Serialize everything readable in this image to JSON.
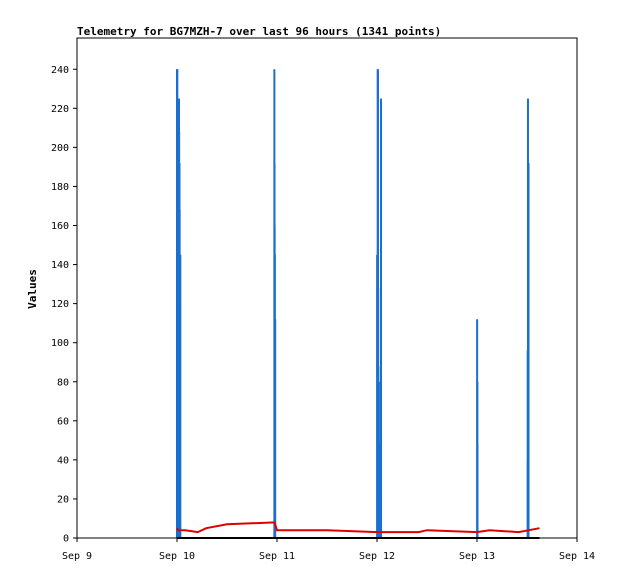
{
  "chart_data": {
    "type": "bar",
    "title": "Telemetry for BG7MZH-7 over last 96 hours (1341 points)",
    "ylabel": "Values",
    "xlabel": "",
    "x_ticks": [
      "Sep 9",
      "Sep 10",
      "Sep 11",
      "Sep 12",
      "Sep 13",
      "Sep 14"
    ],
    "y_ticks": [
      0,
      20,
      40,
      60,
      80,
      100,
      120,
      140,
      160,
      180,
      200,
      220,
      240
    ],
    "xlim": [
      "2024-09-09T00:00",
      "2024-09-14T00:00"
    ],
    "ylim": [
      0,
      256
    ],
    "grid": false,
    "series": [
      {
        "color": "#1a6fcf",
        "style": "bars",
        "points": [
          [
            "2024-09-10T00:00",
            240
          ],
          [
            "2024-09-10T00:02",
            240
          ],
          [
            "2024-09-10T00:04",
            240
          ],
          [
            "2024-09-10T00:07",
            145
          ],
          [
            "2024-09-10T00:10",
            40
          ],
          [
            "2024-09-10T00:14",
            48
          ],
          [
            "2024-09-10T00:17",
            48
          ],
          [
            "2024-09-10T00:22",
            112
          ],
          [
            "2024-09-10T00:26",
            96
          ],
          [
            "2024-09-10T00:29",
            225
          ],
          [
            "2024-09-10T00:31",
            208
          ],
          [
            "2024-09-10T00:34",
            192
          ],
          [
            "2024-09-10T00:36",
            192
          ],
          [
            "2024-09-10T00:38",
            168
          ],
          [
            "2024-09-10T00:41",
            120
          ],
          [
            "2024-09-10T00:43",
            72
          ],
          [
            "2024-09-10T00:48",
            145
          ],
          [
            "2024-09-10T23:22",
            240
          ],
          [
            "2024-09-10T23:24",
            192
          ],
          [
            "2024-09-10T23:26",
            160
          ],
          [
            "2024-09-10T23:29",
            145
          ],
          [
            "2024-09-10T23:31",
            112
          ],
          [
            "2024-09-10T23:34",
            112
          ],
          [
            "2024-09-12T00:02",
            145
          ],
          [
            "2024-09-12T00:05",
            128
          ],
          [
            "2024-09-12T00:07",
            96
          ],
          [
            "2024-09-12T00:10",
            240
          ],
          [
            "2024-09-12T00:12",
            120
          ],
          [
            "2024-09-12T00:14",
            240
          ],
          [
            "2024-09-12T00:22",
            40
          ],
          [
            "2024-09-12T00:24",
            80
          ],
          [
            "2024-09-12T00:48",
            20
          ],
          [
            "2024-09-12T00:50",
            48
          ],
          [
            "2024-09-12T00:53",
            88
          ],
          [
            "2024-09-12T00:55",
            128
          ],
          [
            "2024-09-12T00:58",
            225
          ],
          [
            "2024-09-13T00:02",
            112
          ],
          [
            "2024-09-13T00:05",
            80
          ],
          [
            "2024-09-13T00:07",
            48
          ],
          [
            "2024-09-13T12:10",
            96
          ],
          [
            "2024-09-13T12:12",
            40
          ],
          [
            "2024-09-13T12:14",
            225
          ],
          [
            "2024-09-13T12:17",
            112
          ],
          [
            "2024-09-13T12:19",
            96
          ],
          [
            "2024-09-13T12:22",
            192
          ]
        ]
      },
      {
        "color": "#dd0000",
        "style": "line",
        "points": [
          [
            "2024-09-09T23:58",
            5
          ],
          [
            "2024-09-10T00:20",
            4
          ],
          [
            "2024-09-10T02:00",
            4
          ],
          [
            "2024-09-10T05:00",
            3
          ],
          [
            "2024-09-10T07:00",
            5
          ],
          [
            "2024-09-10T12:00",
            7
          ],
          [
            "2024-09-10T23:25",
            8
          ],
          [
            "2024-09-11T00:00",
            4
          ],
          [
            "2024-09-11T12:00",
            4
          ],
          [
            "2024-09-12T00:00",
            3
          ],
          [
            "2024-09-12T10:00",
            3
          ],
          [
            "2024-09-12T12:00",
            4
          ],
          [
            "2024-09-13T00:00",
            3
          ],
          [
            "2024-09-13T03:00",
            4
          ],
          [
            "2024-09-13T10:00",
            3
          ],
          [
            "2024-09-13T15:00",
            5
          ]
        ]
      },
      {
        "color": "#000000",
        "style": "line",
        "points": [
          [
            "2024-09-09T23:58",
            0
          ],
          [
            "2024-09-13T15:00",
            0
          ]
        ]
      }
    ]
  }
}
